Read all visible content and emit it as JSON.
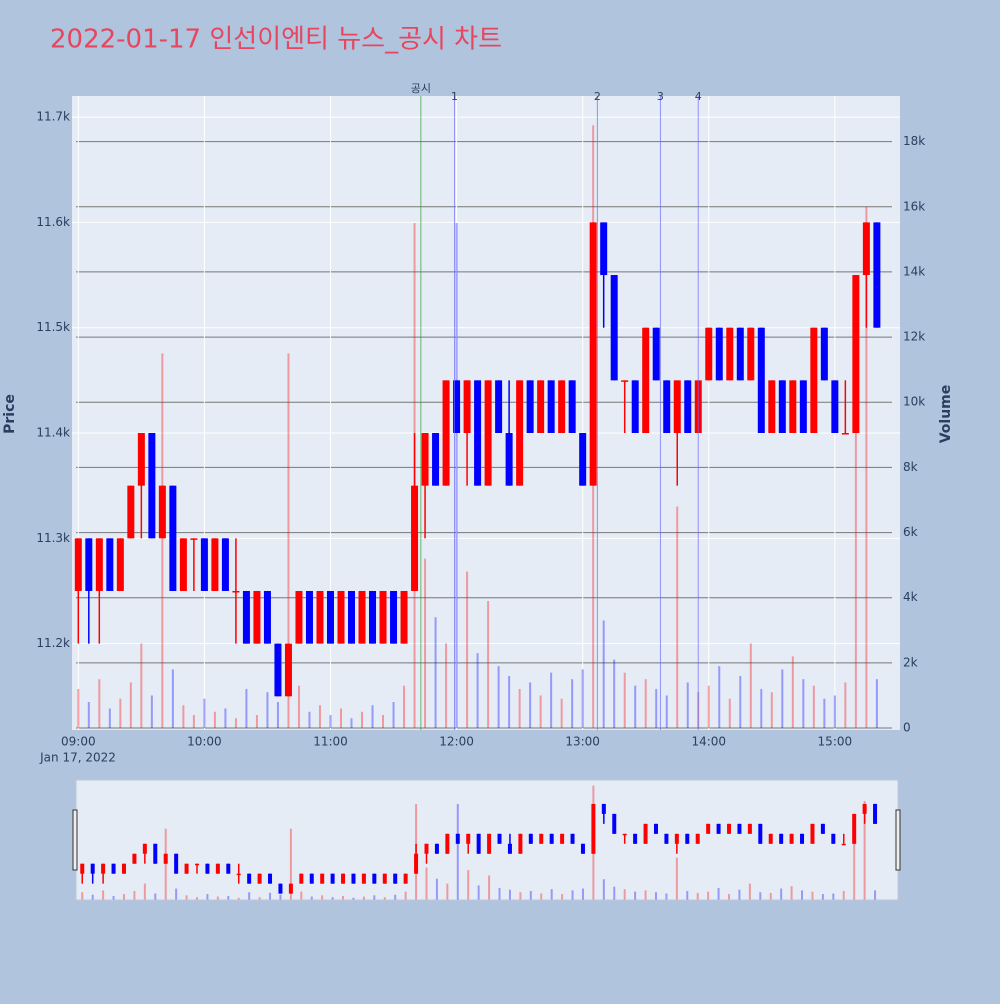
{
  "chart_data": {
    "type": "candlestick",
    "title": "2022-01-17 인선이엔티 뉴스_공시 차트",
    "y_title": "Price",
    "y2_title": "Volume",
    "x_date_label": "Jan 17, 2022",
    "x": [
      "09:00",
      "09:05",
      "09:10",
      "09:15",
      "09:20",
      "09:25",
      "09:30",
      "09:35",
      "09:40",
      "09:45",
      "09:50",
      "09:55",
      "10:00",
      "10:05",
      "10:10",
      "10:15",
      "10:20",
      "10:25",
      "10:30",
      "10:35",
      "10:40",
      "10:45",
      "10:50",
      "10:55",
      "11:00",
      "11:05",
      "11:10",
      "11:15",
      "11:20",
      "11:25",
      "11:30",
      "11:35",
      "11:40",
      "11:45",
      "11:50",
      "11:55",
      "12:00",
      "12:05",
      "12:10",
      "12:15",
      "12:20",
      "12:25",
      "12:30",
      "12:35",
      "12:40",
      "12:45",
      "12:50",
      "12:55",
      "13:00",
      "13:05",
      "13:10",
      "13:15",
      "13:20",
      "13:25",
      "13:30",
      "13:35",
      "13:40",
      "13:45",
      "13:50",
      "13:55",
      "14:00",
      "14:05",
      "14:10",
      "14:15",
      "14:20",
      "14:25",
      "14:30",
      "14:35",
      "14:40",
      "14:45",
      "14:50",
      "14:55",
      "15:00",
      "15:05",
      "15:10",
      "15:15",
      "15:20"
    ],
    "open": [
      11250,
      11300,
      11250,
      11300,
      11250,
      11300,
      11350,
      11400,
      11300,
      11350,
      11250,
      11300,
      11300,
      11250,
      11300,
      11250,
      11250,
      11200,
      11250,
      11200,
      11150,
      11200,
      11250,
      11200,
      11250,
      11200,
      11250,
      11200,
      11250,
      11200,
      11250,
      11200,
      11250,
      11350,
      11400,
      11350,
      11450,
      11400,
      11450,
      11350,
      11450,
      11400,
      11350,
      11450,
      11400,
      11450,
      11400,
      11450,
      11400,
      11350,
      11600,
      11550,
      11450,
      11450,
      11400,
      11500,
      11450,
      11400,
      11450,
      11400,
      11450,
      11500,
      11450,
      11500,
      11450,
      11500,
      11400,
      11450,
      11400,
      11450,
      11400,
      11500,
      11450,
      11400,
      11400,
      11550,
      11600
    ],
    "high": [
      11300,
      11300,
      11300,
      11300,
      11300,
      11350,
      11400,
      11400,
      11350,
      11350,
      11300,
      11300,
      11300,
      11300,
      11300,
      11300,
      11250,
      11250,
      11250,
      11200,
      11200,
      11250,
      11250,
      11250,
      11250,
      11250,
      11250,
      11250,
      11250,
      11250,
      11250,
      11250,
      11400,
      11400,
      11400,
      11450,
      11450,
      11450,
      11450,
      11450,
      11450,
      11450,
      11450,
      11450,
      11450,
      11450,
      11450,
      11450,
      11400,
      11600,
      11600,
      11550,
      11450,
      11450,
      11500,
      11500,
      11450,
      11450,
      11450,
      11450,
      11500,
      11500,
      11500,
      11500,
      11500,
      11500,
      11450,
      11450,
      11450,
      11450,
      11500,
      11500,
      11450,
      11450,
      11550,
      11600,
      11600
    ],
    "low": [
      11200,
      11200,
      11200,
      11250,
      11250,
      11300,
      11300,
      11300,
      11300,
      11250,
      11250,
      11250,
      11250,
      11250,
      11250,
      11200,
      11200,
      11200,
      11200,
      11150,
      11150,
      11200,
      11200,
      11200,
      11200,
      11200,
      11200,
      11200,
      11200,
      11200,
      11200,
      11200,
      11250,
      11300,
      11350,
      11350,
      11400,
      11350,
      11350,
      11350,
      11400,
      11350,
      11350,
      11400,
      11400,
      11400,
      11400,
      11400,
      11350,
      11350,
      11500,
      11450,
      11400,
      11400,
      11400,
      11450,
      11400,
      11350,
      11400,
      11400,
      11450,
      11450,
      11450,
      11450,
      11450,
      11400,
      11400,
      11400,
      11400,
      11400,
      11400,
      11450,
      11400,
      11400,
      11400,
      11500,
      11500
    ],
    "close": [
      11300,
      11250,
      11300,
      11250,
      11300,
      11350,
      11400,
      11300,
      11350,
      11250,
      11300,
      11300,
      11250,
      11300,
      11250,
      11250,
      11200,
      11250,
      11200,
      11150,
      11200,
      11250,
      11200,
      11250,
      11200,
      11250,
      11200,
      11250,
      11200,
      11250,
      11200,
      11250,
      11350,
      11400,
      11350,
      11450,
      11400,
      11450,
      11350,
      11450,
      11400,
      11350,
      11450,
      11400,
      11450,
      11400,
      11450,
      11400,
      11350,
      11600,
      11550,
      11450,
      11450,
      11400,
      11500,
      11450,
      11400,
      11450,
      11400,
      11450,
      11500,
      11450,
      11500,
      11450,
      11500,
      11400,
      11450,
      11400,
      11450,
      11400,
      11500,
      11450,
      11400,
      11400,
      11550,
      11600,
      11500
    ],
    "volume": [
      1200,
      800,
      1500,
      600,
      900,
      1400,
      2600,
      1000,
      11500,
      1800,
      700,
      400,
      900,
      500,
      600,
      300,
      1200,
      400,
      1100,
      800,
      11500,
      1300,
      500,
      700,
      400,
      600,
      300,
      500,
      700,
      400,
      800,
      1300,
      15500,
      5200,
      3400,
      2600,
      15500,
      4800,
      2300,
      3900,
      1900,
      1600,
      1200,
      1400,
      1000,
      1700,
      900,
      1500,
      1800,
      18500,
      3300,
      2100,
      1700,
      1300,
      1500,
      1200,
      1000,
      6800,
      1400,
      1100,
      1300,
      1900,
      900,
      1600,
      2600,
      1200,
      1100,
      1800,
      2200,
      1500,
      1300,
      900,
      1000,
      1400,
      12000,
      16000,
      1500
    ],
    "increasing_color": "#ff0000",
    "decreasing_color": "#0000ff",
    "xlim": [
      "08:57",
      "15:31"
    ],
    "xticks": [
      "09:00",
      "10:00",
      "11:00",
      "12:00",
      "13:00",
      "14:00",
      "15:00"
    ],
    "ylim": [
      11118,
      11720
    ],
    "yticks": [
      {
        "value": 11200,
        "label": "11.2k"
      },
      {
        "value": 11300,
        "label": "11.3k"
      },
      {
        "value": 11400,
        "label": "11.4k"
      },
      {
        "value": 11500,
        "label": "11.5k"
      },
      {
        "value": 11600,
        "label": "11.6k"
      },
      {
        "value": 11700,
        "label": "11.7k"
      }
    ],
    "y2lim": [
      -60,
      19400
    ],
    "y2ticks": [
      0,
      {
        "value": 2000,
        "label": "2k"
      },
      {
        "value": 4000,
        "label": "4k"
      },
      {
        "value": 6000,
        "label": "6k"
      },
      {
        "value": 8000,
        "label": "8k"
      },
      {
        "value": 10000,
        "label": "10k"
      },
      {
        "value": 12000,
        "label": "12k"
      },
      {
        "value": 14000,
        "label": "14k"
      },
      {
        "value": 16000,
        "label": "16k"
      },
      {
        "value": 18000,
        "label": "18k"
      }
    ],
    "annotations": [
      {
        "label": "공시",
        "x": "11:43",
        "color": "#2ca02c"
      },
      {
        "label": "1",
        "x": "11:59",
        "color": "#6a6aff"
      },
      {
        "label": "2",
        "x": "13:07",
        "color": "#6a6aff"
      },
      {
        "label": "3",
        "x": "13:37",
        "color": "#6a6aff"
      },
      {
        "label": "4",
        "x": "13:55",
        "color": "#6a6aff"
      }
    ]
  }
}
